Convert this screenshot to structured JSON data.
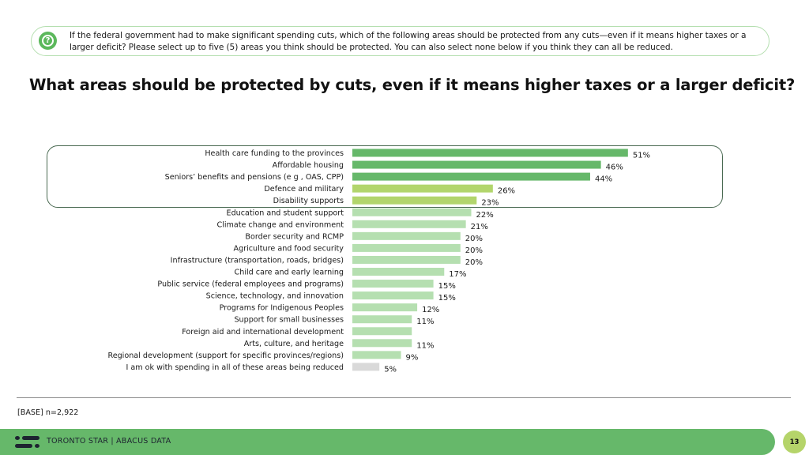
{
  "question": {
    "icon": "question-bubble-icon",
    "text": "If the federal government had to make significant spending cuts, which of the following areas should be protected from any cuts—even if it means higher taxes or a larger deficit? Please select up to five (5) areas you think should be protected.  You can also select none below if you think they can all be reduced."
  },
  "page_title": "What areas should be protected by cuts, even if it means higher taxes or a larger deficit?",
  "base_note": "[BASE] n=2,922",
  "footer": {
    "logo_icon": "abacus-logo-icon",
    "text": "TORONTO STAR  |  ABACUS DATA",
    "page_number": "13"
  },
  "colors": {
    "top_group": "#66b86a",
    "second_group": "#b2d56c",
    "rest": "#b5dfb0",
    "none_option": "#d9d9d9",
    "highlight_border": "#4a6a52"
  },
  "chart_data": {
    "type": "bar",
    "orientation": "horizontal",
    "title": "What areas should be protected by cuts, even if it means higher taxes or a larger deficit?",
    "xlabel": "",
    "ylabel": "",
    "unit": "%",
    "xlim": [
      0,
      100
    ],
    "grid": false,
    "legend": "none",
    "highlight": "top five items boxed",
    "categories": [
      "Health care funding to the provinces",
      "Affordable housing",
      "Seniors’ benefits and pensions (e g , OAS, CPP)",
      "Defence and military",
      "Disability supports",
      "Education and student support",
      "Climate change and environment",
      "Border security and RCMP",
      "Agriculture and food security",
      "Infrastructure (transportation, roads, bridges)",
      "Child care and early learning",
      "Public service (federal employees and programs)",
      "Science, technology, and innovation",
      "Programs for Indigenous Peoples",
      "Support for small businesses",
      "Foreign aid and international development",
      "Arts, culture, and heritage",
      "Regional development (support for specific provinces/regions)",
      "I am ok with spending in all of these areas being reduced"
    ],
    "values": [
      51,
      46,
      44,
      26,
      23,
      22,
      21,
      20,
      20,
      20,
      17,
      15,
      15,
      12,
      11,
      11,
      11,
      9,
      5
    ],
    "data_labels": [
      "51%",
      "46%",
      "44%",
      "26%",
      "23%",
      "22%",
      "21%",
      "20%",
      "20%",
      "20%",
      "17%",
      "15%",
      "15%",
      "12%",
      "11%",
      "",
      "11%",
      "9%",
      "5%"
    ],
    "color_groups": [
      "top_group",
      "top_group",
      "top_group",
      "second_group",
      "second_group",
      "rest",
      "rest",
      "rest",
      "rest",
      "rest",
      "rest",
      "rest",
      "rest",
      "rest",
      "rest",
      "rest",
      "rest",
      "rest",
      "none_option"
    ]
  }
}
